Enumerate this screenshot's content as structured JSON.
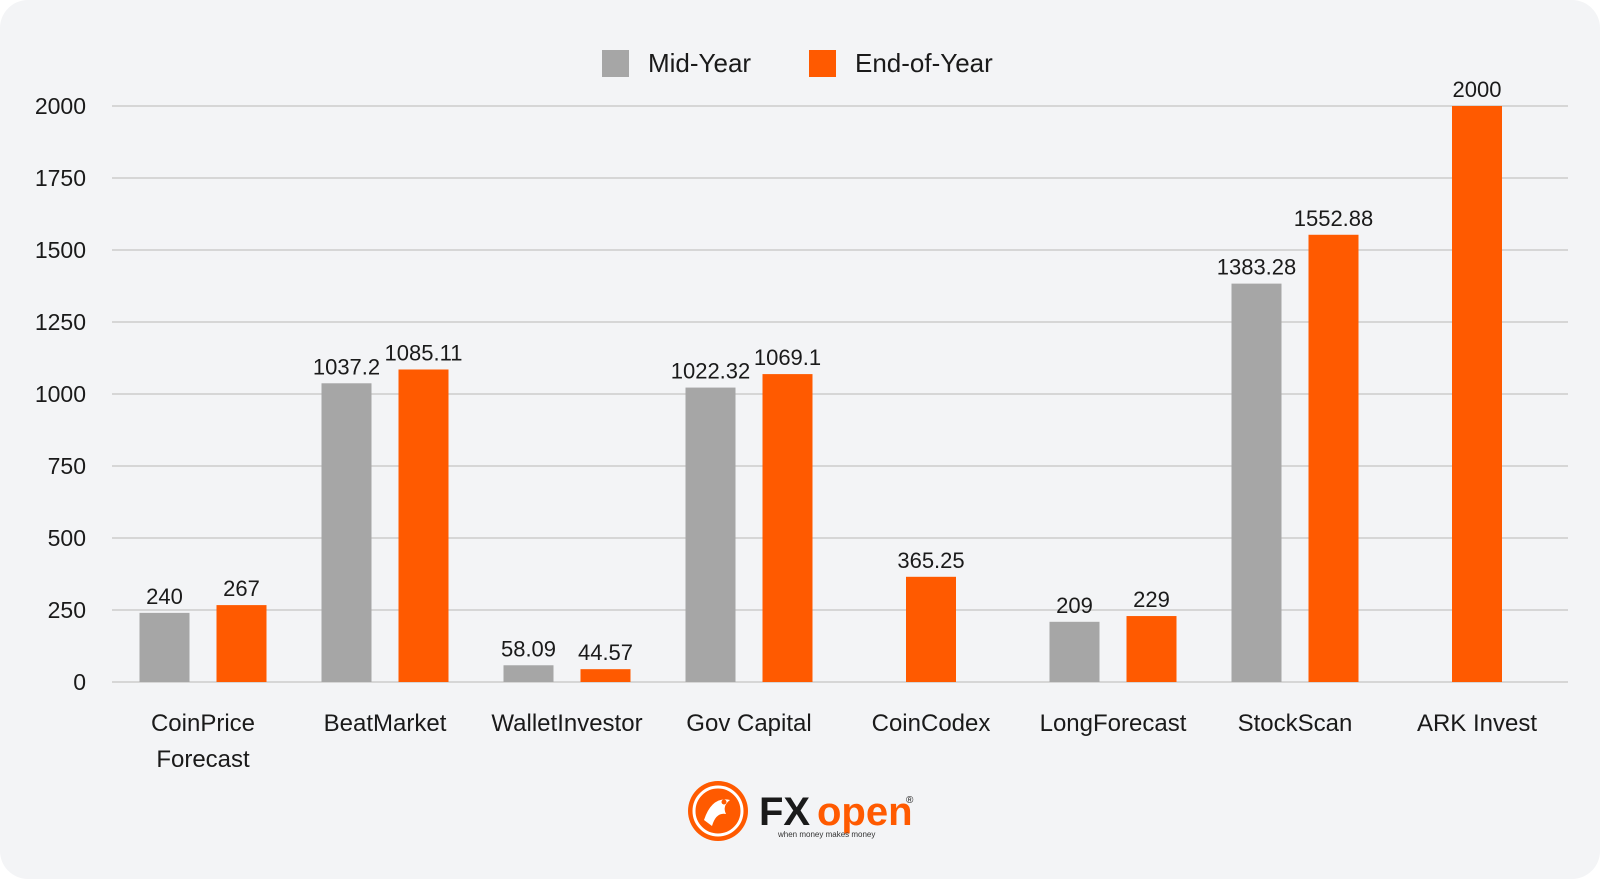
{
  "chart_data": {
    "type": "bar",
    "categories": [
      [
        "CoinPrice",
        "Forecast"
      ],
      [
        "BeatMarket"
      ],
      [
        "WalletInvestor"
      ],
      [
        "Gov Capital"
      ],
      [
        "CoinCodex"
      ],
      [
        "LongForecast"
      ],
      [
        "StockScan"
      ],
      [
        "ARK Invest"
      ]
    ],
    "series": [
      {
        "name": "Mid-Year",
        "color": "#a6a6a6",
        "values": [
          240,
          1037.2,
          58.09,
          1022.32,
          null,
          209,
          1383.28,
          null
        ],
        "labels": [
          "240",
          "1037.2",
          "58.09",
          "1022.32",
          "",
          "209",
          "1383.28",
          ""
        ]
      },
      {
        "name": "End-of-Year",
        "color": "#ff5a00",
        "values": [
          267,
          1085.11,
          44.57,
          1069.1,
          365.25,
          229,
          1552.88,
          2000
        ],
        "labels": [
          "267",
          "1085.11",
          "44.57",
          "1069.1",
          "365.25",
          "229",
          "1552.88",
          "2000"
        ]
      }
    ],
    "yticks": [
      "0",
      "250",
      "500",
      "750",
      "1000",
      "1250",
      "1500",
      "1750",
      "2000"
    ],
    "ylim": [
      0,
      2000
    ],
    "grid": true,
    "legend_position": "top-center"
  },
  "brand": {
    "name_a": "FX",
    "name_b": "open",
    "registered": "®",
    "tagline": "when money makes money"
  }
}
